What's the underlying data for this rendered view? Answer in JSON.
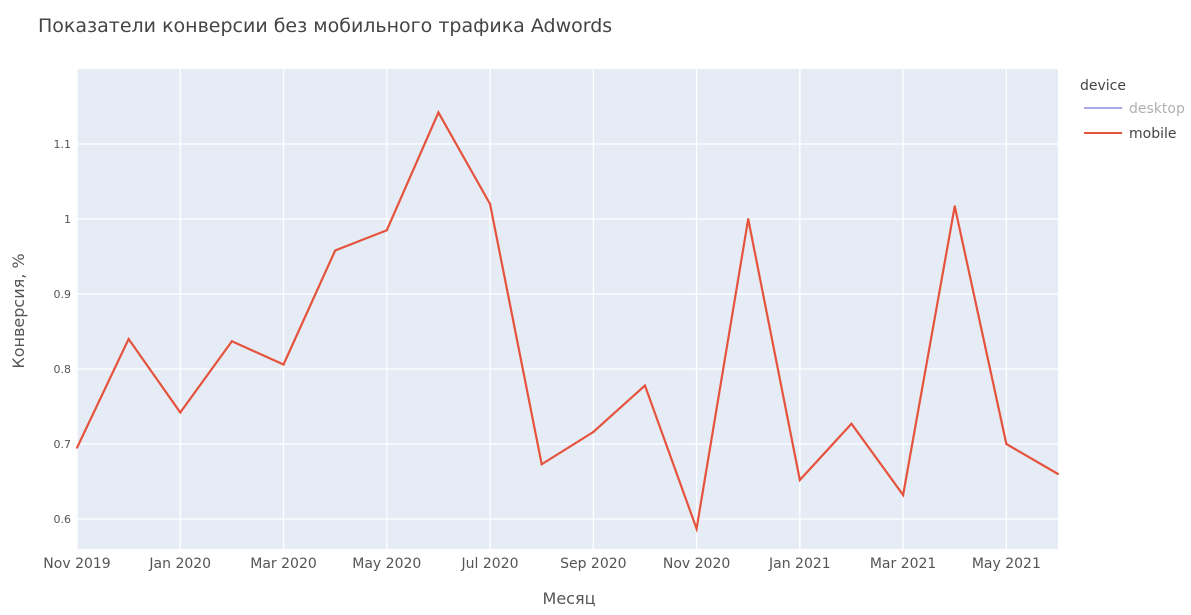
{
  "chart_data": {
    "type": "line",
    "title": "Показатели конверсии без мобильного трафика Adwords",
    "xlabel": "Месяц",
    "ylabel": "Конверсия, %",
    "x": [
      "2019-11",
      "2019-12",
      "2020-01",
      "2020-02",
      "2020-03",
      "2020-04",
      "2020-05",
      "2020-06",
      "2020-07",
      "2020-08",
      "2020-09",
      "2020-10",
      "2020-11",
      "2020-12",
      "2021-01",
      "2021-02",
      "2021-03",
      "2021-04",
      "2021-05",
      "2021-06"
    ],
    "x_tick_values": [
      "2019-11",
      "2020-01",
      "2020-03",
      "2020-05",
      "2020-07",
      "2020-09",
      "2020-11",
      "2021-01",
      "2021-03",
      "2021-05"
    ],
    "x_tick_labels": [
      "Nov 2019",
      "Jan 2020",
      "Mar 2020",
      "May 2020",
      "Jul 2020",
      "Sep 2020",
      "Nov 2020",
      "Jan 2021",
      "Mar 2021",
      "May 2021"
    ],
    "xlim": [
      "2019-11",
      "2021-06"
    ],
    "y_tick_values": [
      0.6,
      0.7,
      0.8,
      0.9,
      1.0,
      1.1
    ],
    "y_tick_labels": [
      "0.6",
      "0.7",
      "0.8",
      "0.9",
      "1",
      "1.1"
    ],
    "ylim": [
      0.56,
      1.2
    ],
    "series": [
      {
        "name": "mobile",
        "color": "#e5533c",
        "values": [
          0.695,
          0.84,
          0.742,
          0.837,
          0.806,
          0.958,
          0.985,
          1.142,
          1.02,
          0.673,
          0.716,
          0.778,
          0.587,
          1.0,
          0.652,
          0.727,
          0.632,
          1.017,
          0.7,
          0.66
        ]
      }
    ],
    "legend": {
      "title": "device",
      "position": "top-right",
      "items": [
        {
          "label": "desktop",
          "color": "#a9a9ec",
          "hidden": true
        },
        {
          "label": "mobile",
          "color": "#e5533c",
          "hidden": false
        }
      ]
    },
    "grid": true,
    "plot_background": "#e5ecf6"
  }
}
